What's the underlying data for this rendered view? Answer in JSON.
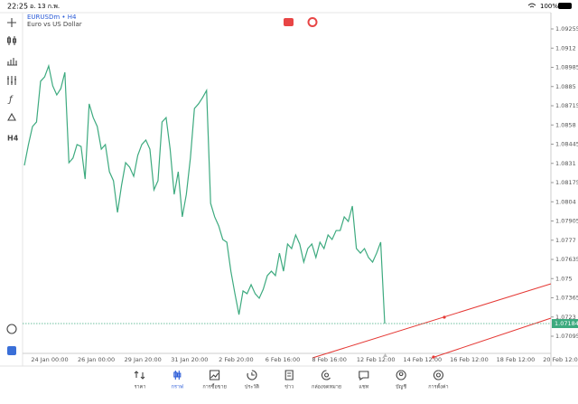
{
  "status_bar": {
    "time": "22:25",
    "date": "อ. 13 ก.พ.",
    "battery": "100%"
  },
  "toolbar": {
    "timeframe": "H4"
  },
  "symbol": {
    "title": "EURUSDm • H4",
    "description": "Euro vs US Dollar"
  },
  "chart_data": {
    "type": "line",
    "ylim": [
      1.07095,
      1.09255
    ],
    "yticks": [
      1.09255,
      1.0912,
      1.08985,
      1.0885,
      1.08715,
      1.0858,
      1.08445,
      1.0831,
      1.08175,
      1.0804,
      1.07905,
      1.0777,
      1.07635,
      1.075,
      1.07365,
      1.0723,
      1.07095
    ],
    "xticks": [
      "24 Jan 00:00",
      "26 Jan 00:00",
      "29 Jan 20:00",
      "31 Jan 20:00",
      "2 Feb 20:00",
      "6 Feb 16:00",
      "8 Feb 16:00",
      "12 Feb 12:00",
      "14 Feb 12:00",
      "16 Feb 12:00",
      "18 Feb 12:00",
      "20 Feb 12:00"
    ],
    "current_price": 1.07184,
    "series": [
      {
        "name": "EURUSDm",
        "color": "#3daa7f",
        "values": [
          1.08296,
          1.08442,
          1.08569,
          1.08601,
          1.08887,
          1.08918,
          1.08995,
          1.08855,
          1.08791,
          1.08836,
          1.0895,
          1.08315,
          1.08347,
          1.08442,
          1.08429,
          1.082,
          1.08728,
          1.08632,
          1.08569,
          1.0841,
          1.08442,
          1.08251,
          1.08188,
          1.07965,
          1.08156,
          1.08315,
          1.08283,
          1.08219,
          1.08366,
          1.08442,
          1.08474,
          1.0841,
          1.08124,
          1.08188,
          1.08601,
          1.08632,
          1.0841,
          1.08092,
          1.08251,
          1.07934,
          1.08092,
          1.08347,
          1.08696,
          1.08728,
          1.08772,
          1.08823,
          1.08029,
          1.07934,
          1.0787,
          1.07775,
          1.07756,
          1.07552,
          1.07394,
          1.07247,
          1.07413,
          1.07394,
          1.07457,
          1.07394,
          1.07362,
          1.07425,
          1.07521,
          1.07552,
          1.07521,
          1.07679,
          1.07552,
          1.07743,
          1.07711,
          1.07807,
          1.07743,
          1.07616,
          1.07711,
          1.07743,
          1.07648,
          1.07756,
          1.07711,
          1.07807,
          1.07775,
          1.07838,
          1.07838,
          1.07934,
          1.07902,
          1.0801,
          1.07711,
          1.07679,
          1.07711,
          1.07648,
          1.07616,
          1.07679,
          1.07756,
          1.07184
        ]
      }
    ]
  },
  "tabs": [
    "ราคา",
    "กราฟ",
    "การซื้อขาย",
    "ประวัติ",
    "ข่าว",
    "กล่องจดหมาย",
    "แชท",
    "บัญชี",
    "การตั้งค่า"
  ]
}
